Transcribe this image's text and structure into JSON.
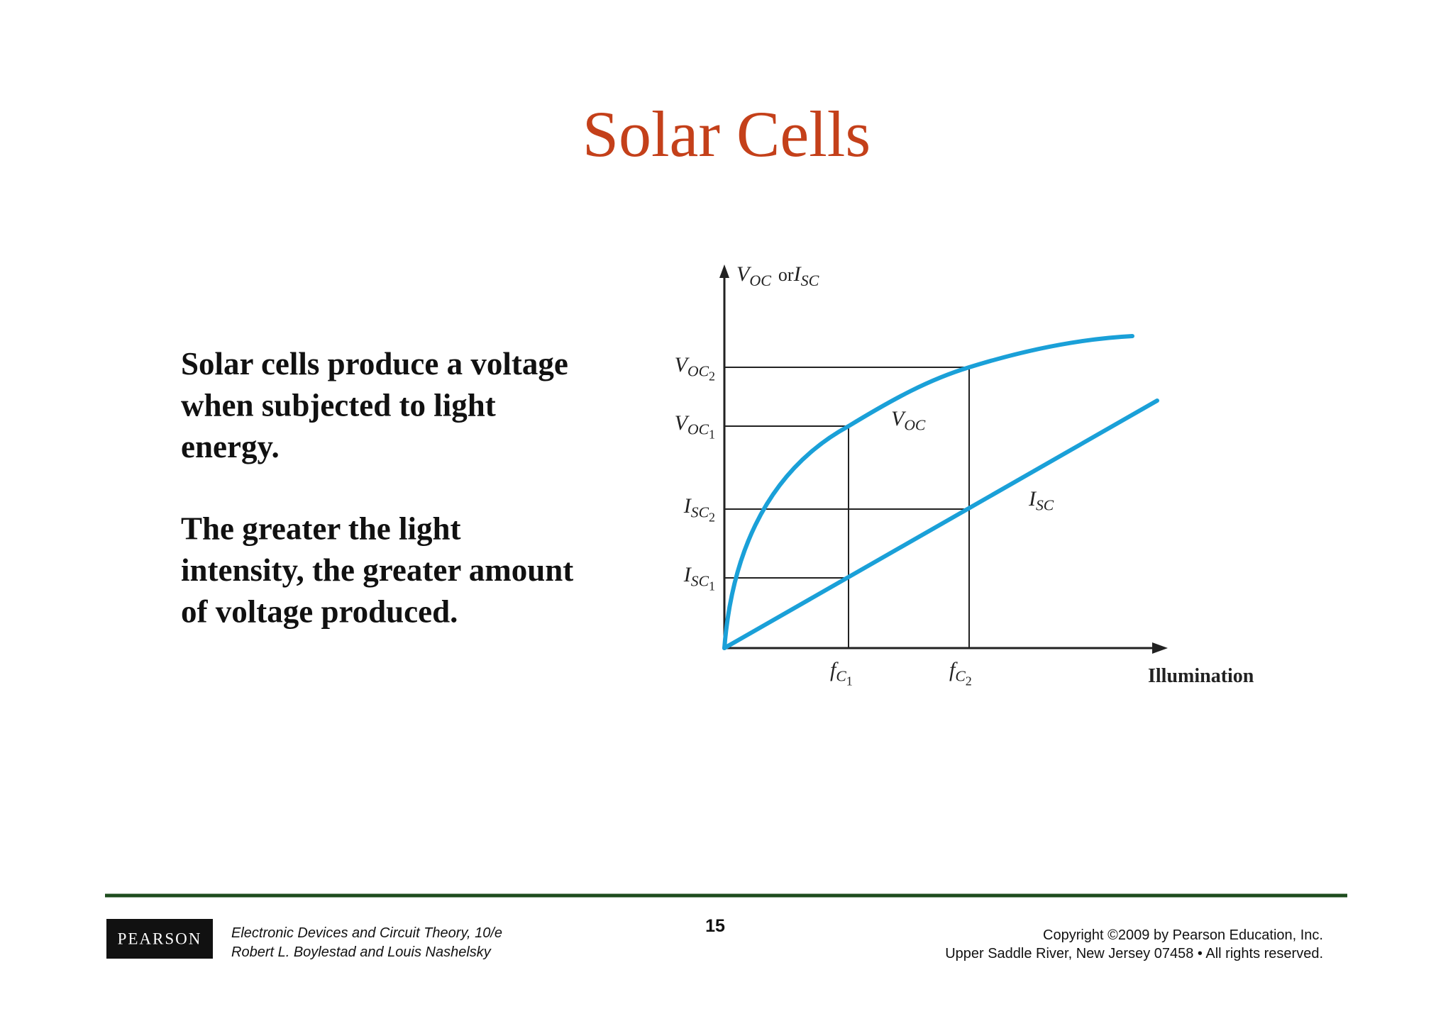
{
  "title": "Solar Cells",
  "body": {
    "paragraphs": [
      [
        "Solar cells produce a voltage",
        "when subjected to light",
        "energy."
      ],
      [
        "The greater the light",
        "intensity, the greater amount",
        "of voltage produced."
      ]
    ]
  },
  "figure": {
    "y_axis_label": {
      "first": {
        "symbol": "V",
        "sub": "OC"
      },
      "joiner": "or",
      "second": {
        "symbol": "I",
        "sub": "SC"
      }
    },
    "x_axis_label": "Illumination",
    "voc2": {
      "symbol": "V",
      "sub": "OC",
      "index": "2"
    },
    "voc1": {
      "symbol": "V",
      "sub": "OC",
      "index": "1"
    },
    "isc2": {
      "symbol": "I",
      "sub": "SC",
      "index": "2"
    },
    "isc1": {
      "symbol": "I",
      "sub": "SC",
      "index": "1"
    },
    "fc1": {
      "symbol": "f",
      "sub": "C",
      "index": "1"
    },
    "fc2": {
      "symbol": "f",
      "sub": "C",
      "index": "2"
    },
    "voc_curve": {
      "symbol": "V",
      "sub": "OC"
    },
    "isc_curve": {
      "symbol": "I",
      "sub": "SC"
    }
  },
  "footer": {
    "logo": "PEARSON",
    "book": [
      "Electronic Devices and Circuit Theory, 10/e",
      "Robert L. Boylestad and Louis Nashelsky"
    ],
    "page": "15",
    "copyright": [
      "Copyright ©2009 by Pearson Education, Inc.",
      "Upper Saddle River, New Jersey 07458 • All rights reserved."
    ]
  }
}
